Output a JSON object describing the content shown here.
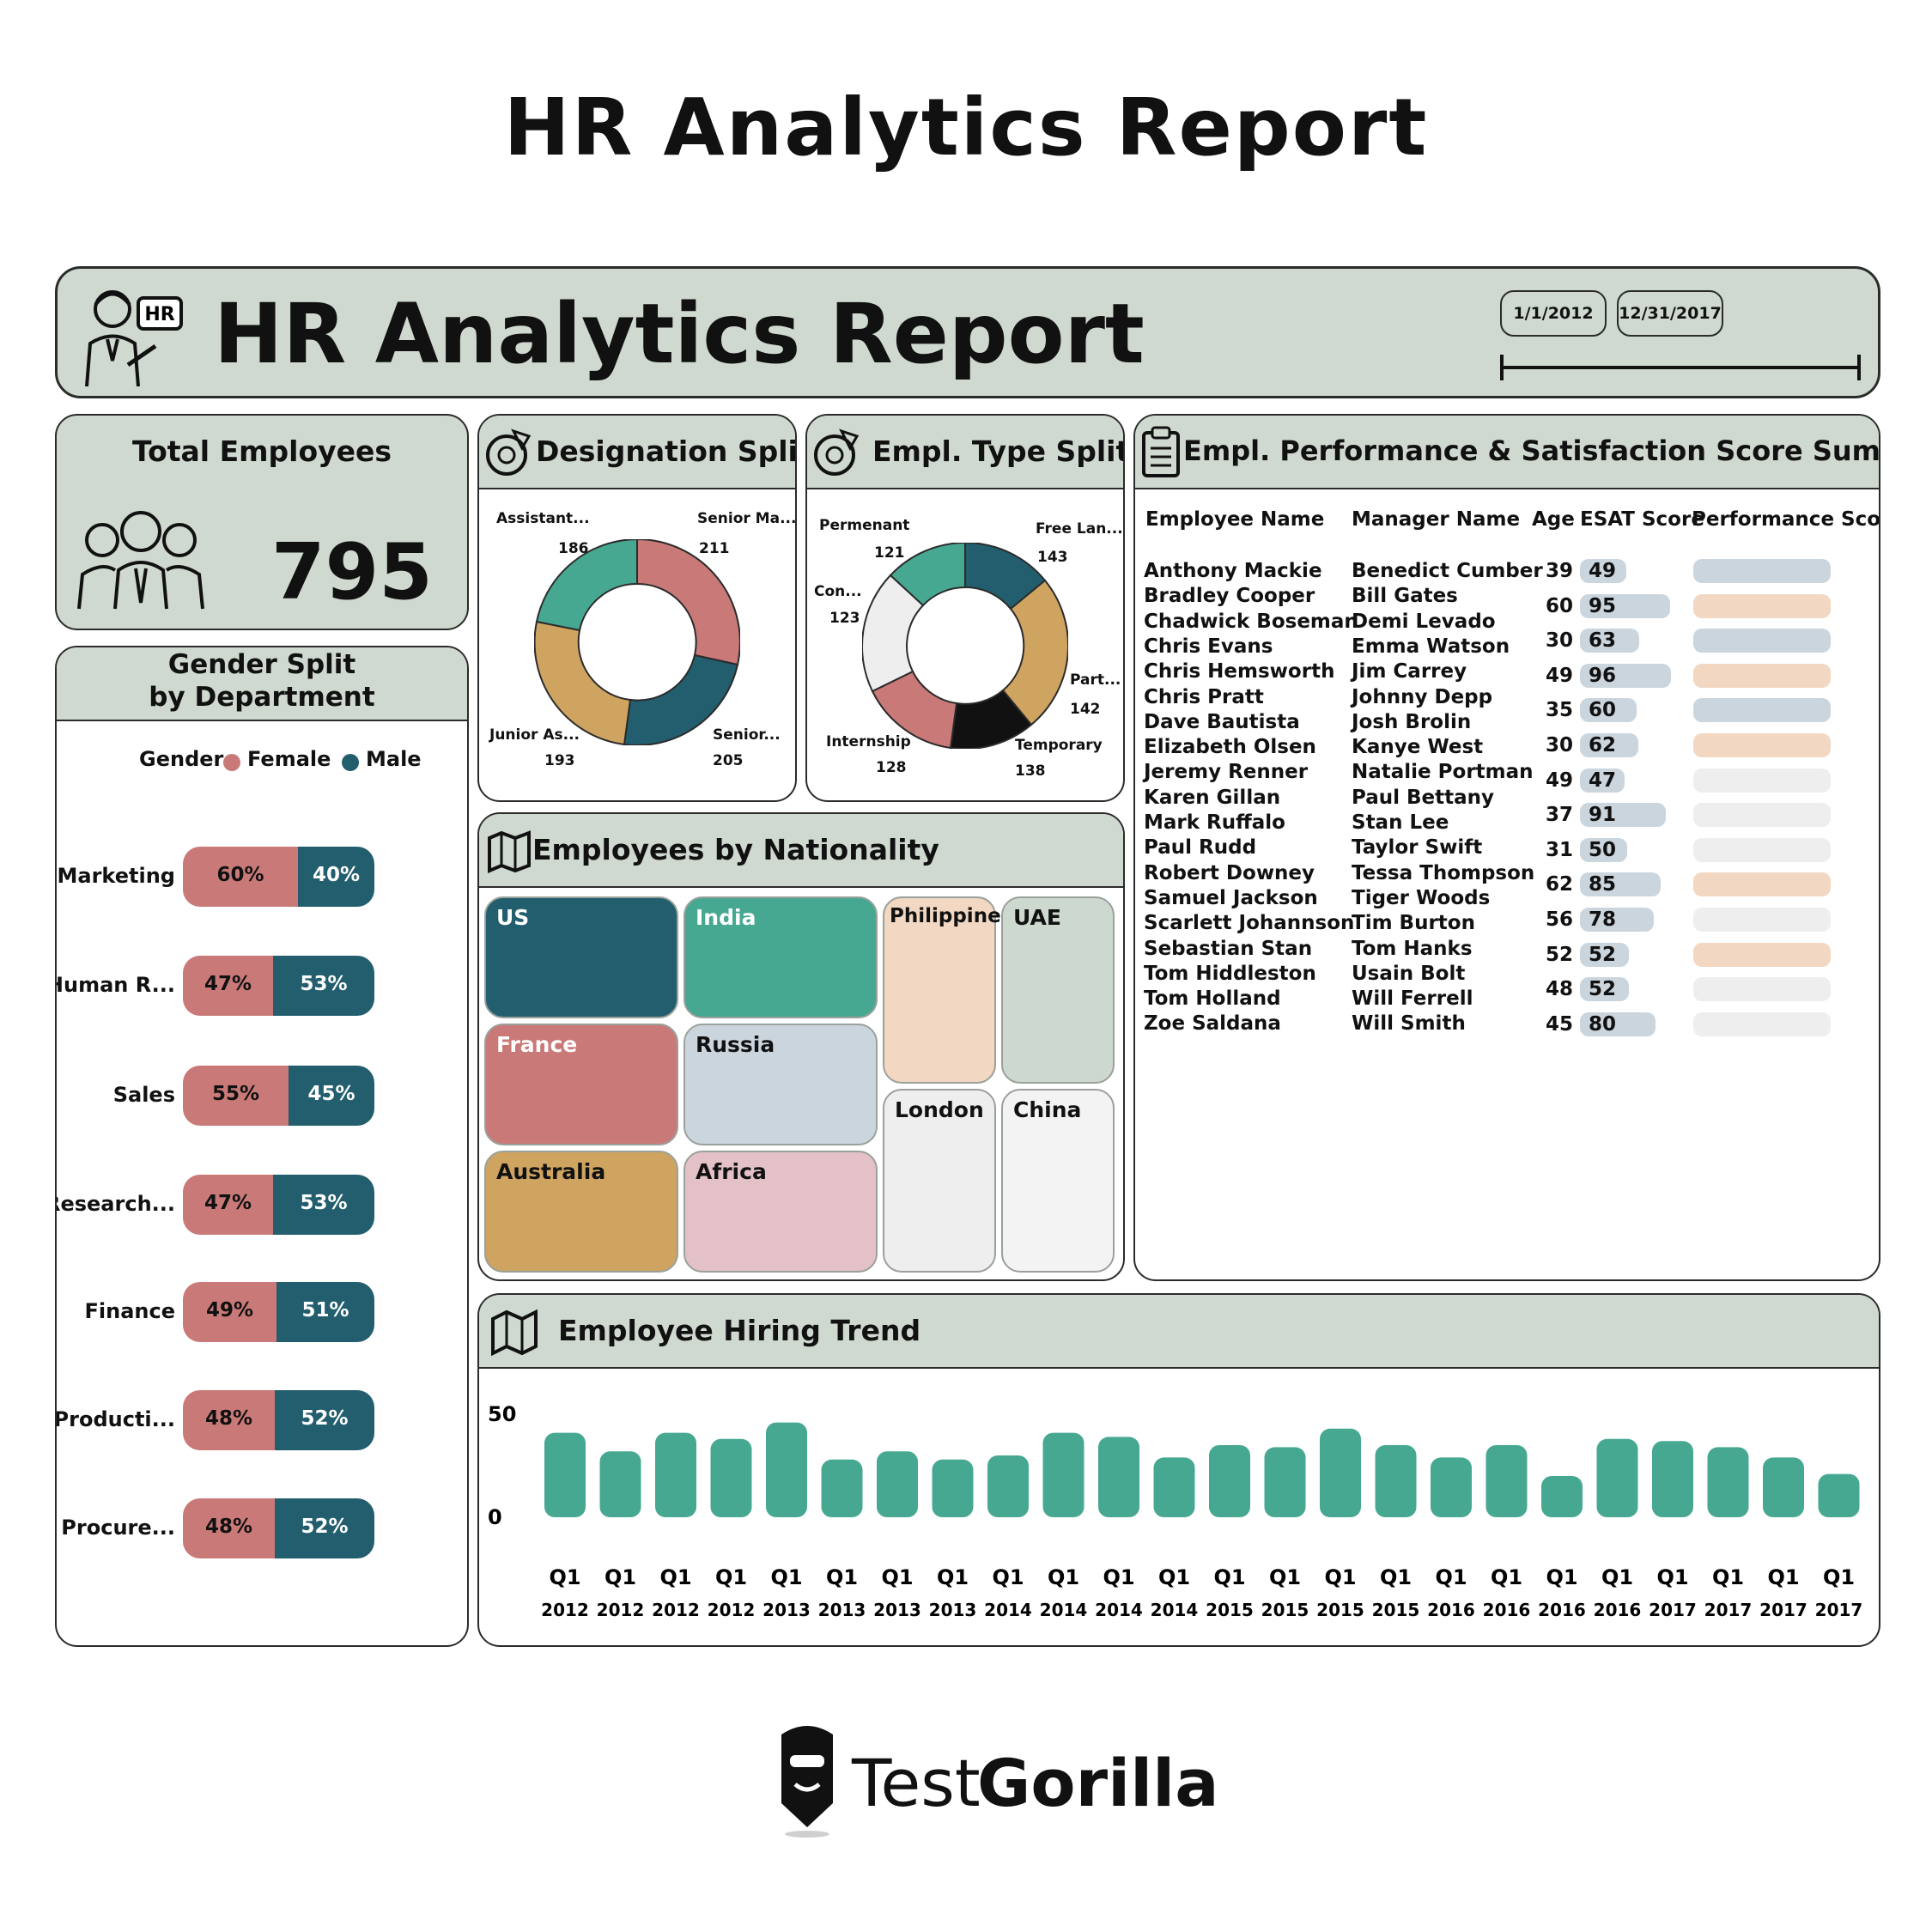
{
  "page_title": "HR Analytics Report",
  "header": {
    "title": "HR Analytics Report",
    "date_start": "1/1/2012",
    "date_end": "12/31/2017"
  },
  "total": {
    "title": "Total Employees",
    "value": "795"
  },
  "gender": {
    "title_line1": "Gender Split",
    "title_line2": "by Department",
    "legend_label": "Gender",
    "female_label": "Female",
    "male_label": "Male",
    "female_color": "#c97a78",
    "male_color": "#235e6e",
    "rows": [
      {
        "dept": "Marketing",
        "female": "60%",
        "male": "40%",
        "female_frac": 0.6
      },
      {
        "dept": "Human R...",
        "female": "47%",
        "male": "53%",
        "female_frac": 0.47
      },
      {
        "dept": "Sales",
        "female": "55%",
        "male": "45%",
        "female_frac": 0.55
      },
      {
        "dept": "Research...",
        "female": "47%",
        "male": "53%",
        "female_frac": 0.47
      },
      {
        "dept": "Finance",
        "female": "49%",
        "male": "51%",
        "female_frac": 0.49
      },
      {
        "dept": "Producti...",
        "female": "48%",
        "male": "52%",
        "female_frac": 0.48
      },
      {
        "dept": "Procure...",
        "female": "48%",
        "male": "52%",
        "female_frac": 0.48
      }
    ]
  },
  "designation": {
    "title": "Designation Split",
    "labels": [
      {
        "name": "Assistant...",
        "value": "186"
      },
      {
        "name": "Senior Ma...",
        "value": "211"
      },
      {
        "name": "Junior As...",
        "value": "193"
      },
      {
        "name": "Senior...",
        "value": "205"
      }
    ]
  },
  "empl_type": {
    "title": "Empl. Type Split",
    "labels": [
      {
        "name": "Permenant",
        "value": "121"
      },
      {
        "name": "Free Lan...",
        "value": "143"
      },
      {
        "name": "Con...",
        "value": "123"
      },
      {
        "name": "Part...",
        "value": "142"
      },
      {
        "name": "Internship",
        "value": "128"
      },
      {
        "name": "Temporary",
        "value": "138"
      }
    ]
  },
  "nationality": {
    "title": "Employees by Nationality",
    "cells": [
      {
        "name": "US",
        "color": "#235e6e",
        "text_color": "#ffffff"
      },
      {
        "name": "India",
        "color": "#47a892",
        "text_color": "#ffffff"
      },
      {
        "name": "Philippines",
        "color": "#f2d7c2",
        "text_color": "#111111"
      },
      {
        "name": "UAE",
        "color": "#cdd8cf",
        "text_color": "#111111"
      },
      {
        "name": "France",
        "color": "#c97a78",
        "text_color": "#ffffff"
      },
      {
        "name": "Russia",
        "color": "#cbd5de",
        "text_color": "#111111"
      },
      {
        "name": "London",
        "color": "#eeeeee",
        "text_color": "#111111"
      },
      {
        "name": "China",
        "color": "#f3f3f3",
        "text_color": "#111111"
      },
      {
        "name": "Australia",
        "color": "#cfa461",
        "text_color": "#111111"
      },
      {
        "name": "Africa",
        "color": "#e4c1c6",
        "text_color": "#111111"
      }
    ]
  },
  "performance": {
    "title": "Empl. Performance & Satisfaction Score Summary",
    "columns": [
      "Employee Name",
      "Manager Name",
      "Age",
      "ESAT Score",
      "Performance Score"
    ],
    "rows": [
      {
        "emp": "Anthony Mackie",
        "mgr": "Benedict Cumber",
        "age": "39",
        "esat": "49",
        "perf": "#cbd5de"
      },
      {
        "emp": "Bradley Cooper",
        "mgr": "Bill Gates",
        "age": "60",
        "esat": "95",
        "perf": "#f2d7c2"
      },
      {
        "emp": "Chadwick Boseman",
        "mgr": "Demi Levado",
        "age": "30",
        "esat": "63",
        "perf": "#cbd5de"
      },
      {
        "emp": "Chris Evans",
        "mgr": "Emma Watson",
        "age": "49",
        "esat": "96",
        "perf": "#f2d7c2"
      },
      {
        "emp": "Chris Hemsworth",
        "mgr": "Jim Carrey",
        "age": "35",
        "esat": "60",
        "perf": "#cbd5de"
      },
      {
        "emp": "Chris Pratt",
        "mgr": "Johnny Depp",
        "age": "30",
        "esat": "62",
        "perf": "#f2d7c2"
      },
      {
        "emp": "Dave Bautista",
        "mgr": "Josh Brolin",
        "age": "49",
        "esat": "47",
        "perf": "#eeeeee"
      },
      {
        "emp": "Elizabeth Olsen",
        "mgr": "Kanye West",
        "age": "37",
        "esat": "91",
        "perf": "#eeeeee"
      },
      {
        "emp": "Jeremy Renner",
        "mgr": "Natalie Portman",
        "age": "31",
        "esat": "50",
        "perf": "#eeeeee"
      },
      {
        "emp": "Karen Gillan",
        "mgr": "Paul Bettany",
        "age": "62",
        "esat": "85",
        "perf": "#f2d7c2"
      },
      {
        "emp": "Mark Ruffalo",
        "mgr": "Stan Lee",
        "age": "56",
        "esat": "78",
        "perf": "#eeeeee"
      },
      {
        "emp": "Paul Rudd",
        "mgr": "Taylor Swift",
        "age": "52",
        "esat": "52",
        "perf": "#f2d7c2"
      },
      {
        "emp": "Robert Downey",
        "mgr": "Tessa Thompson",
        "age": "48",
        "esat": "52",
        "perf": "#eeeeee"
      },
      {
        "emp": "Samuel Jackson",
        "mgr": "Tiger Woods",
        "age": "45",
        "esat": "80",
        "perf": "#eeeeee"
      },
      {
        "emp": "Scarlett Johannson",
        "mgr": "Tim Burton",
        "age": "",
        "esat": "",
        "perf": ""
      },
      {
        "emp": "Sebastian Stan",
        "mgr": "Tom Hanks",
        "age": "",
        "esat": "",
        "perf": ""
      },
      {
        "emp": "Tom Hiddleston",
        "mgr": "Usain Bolt",
        "age": "",
        "esat": "",
        "perf": ""
      },
      {
        "emp": "Tom Holland",
        "mgr": "Will Ferrell",
        "age": "",
        "esat": "",
        "perf": ""
      },
      {
        "emp": "Zoe Saldana",
        "mgr": "Will Smith",
        "age": "",
        "esat": "",
        "perf": ""
      }
    ]
  },
  "hiring": {
    "title": "Employee Hiring Trend",
    "bar_color": "#47a892"
  },
  "chart_data": {
    "type": "bar",
    "title": "Employee Hiring Trend",
    "ylim": [
      0,
      50
    ],
    "yticks": [
      "0",
      "50"
    ],
    "categories": [
      {
        "q": "Q1",
        "y": "2012"
      },
      {
        "q": "Q1",
        "y": "2012"
      },
      {
        "q": "Q1",
        "y": "2012"
      },
      {
        "q": "Q1",
        "y": "2012"
      },
      {
        "q": "Q1",
        "y": "2013"
      },
      {
        "q": "Q1",
        "y": "2013"
      },
      {
        "q": "Q1",
        "y": "2013"
      },
      {
        "q": "Q1",
        "y": "2013"
      },
      {
        "q": "Q1",
        "y": "2014"
      },
      {
        "q": "Q1",
        "y": "2014"
      },
      {
        "q": "Q1",
        "y": "2014"
      },
      {
        "q": "Q1",
        "y": "2014"
      },
      {
        "q": "Q1",
        "y": "2015"
      },
      {
        "q": "Q1",
        "y": "2015"
      },
      {
        "q": "Q1",
        "y": "2015"
      },
      {
        "q": "Q1",
        "y": "2015"
      },
      {
        "q": "Q1",
        "y": "2016"
      },
      {
        "q": "Q1",
        "y": "2016"
      },
      {
        "q": "Q1",
        "y": "2016"
      },
      {
        "q": "Q1",
        "y": "2016"
      },
      {
        "q": "Q1",
        "y": "2017"
      },
      {
        "q": "Q1",
        "y": "2017"
      },
      {
        "q": "Q1",
        "y": "2017"
      },
      {
        "q": "Q1",
        "y": "2017"
      }
    ],
    "values": [
      41,
      32,
      41,
      38,
      46,
      28,
      32,
      28,
      30,
      41,
      39,
      29,
      35,
      34,
      43,
      35,
      29,
      35,
      20,
      38,
      37,
      34,
      29,
      21
    ]
  },
  "footer": {
    "brand_light": "Test",
    "brand_bold": "Gorilla"
  }
}
